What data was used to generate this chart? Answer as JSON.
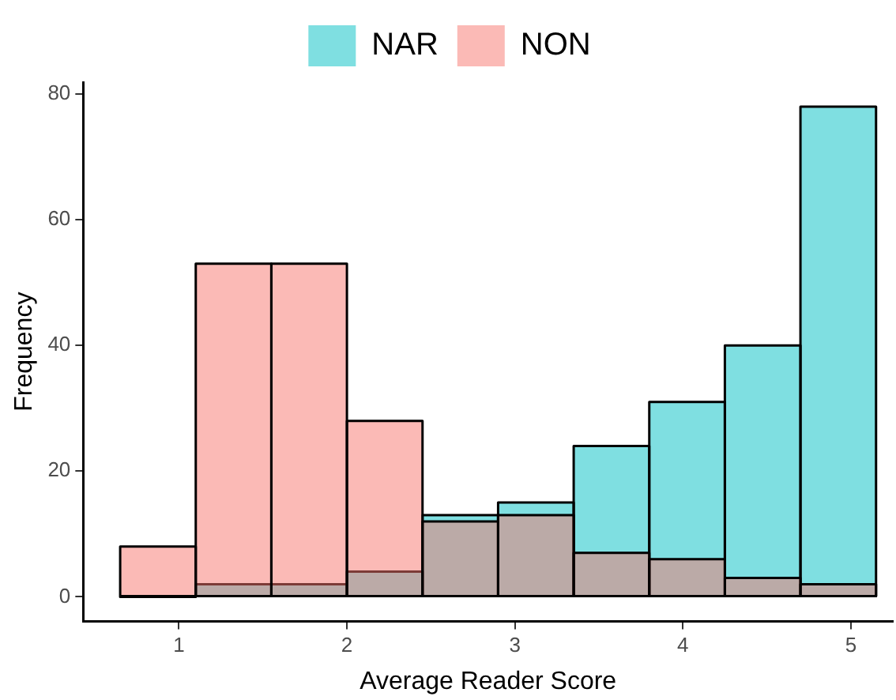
{
  "chart_data": {
    "type": "histogram",
    "xlabel": "Average Reader Score",
    "ylabel": "Frequency",
    "bins": [
      0.65,
      1.1,
      1.55,
      2.0,
      2.45,
      2.9,
      3.35,
      3.8,
      4.25,
      4.7,
      5.15
    ],
    "series": [
      {
        "name": "NAR",
        "color": "#00bfc4",
        "values": [
          0,
          2,
          2,
          4,
          13,
          15,
          24,
          31,
          40,
          78
        ]
      },
      {
        "name": "NON",
        "color": "#f8766d",
        "values": [
          8,
          53,
          53,
          28,
          12,
          13,
          7,
          6,
          3,
          2
        ]
      }
    ],
    "xlim": [
      0.43,
      5.25
    ],
    "xticks": [
      1,
      2,
      3,
      4,
      5
    ],
    "ylim": [
      -3.9,
      81.9
    ],
    "yticks": [
      0,
      20,
      40,
      60,
      80
    ],
    "grid": false,
    "legend": "top"
  }
}
